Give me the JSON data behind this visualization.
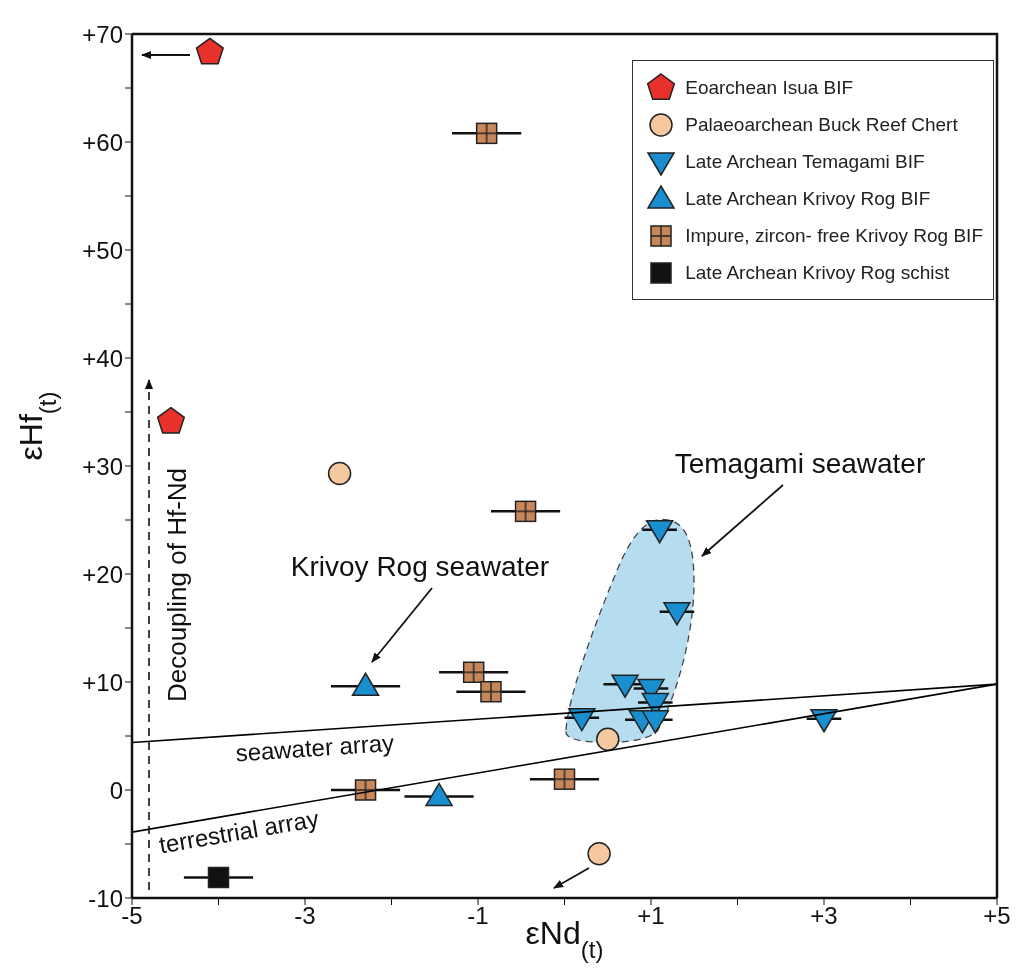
{
  "chart_data": {
    "type": "scatter",
    "xlabel": "εNd$_{(t)}$",
    "ylabel": "εHf$_{(t)}$",
    "xlim": [
      -5,
      5
    ],
    "ylim": [
      -10,
      70
    ],
    "xticks": [
      -5,
      {
        "value": -4,
        "label": null
      },
      -3,
      {
        "value": -2,
        "label": null
      },
      -1,
      {
        "value": 0,
        "label": null
      },
      {
        "value": 1,
        "label": "+1"
      },
      {
        "value": 2,
        "label": null
      },
      {
        "value": 3,
        "label": "+3"
      },
      {
        "value": 4,
        "label": null
      },
      {
        "value": 5,
        "label": "+5"
      }
    ],
    "yticks": [
      -10,
      {
        "value": -5,
        "label": null
      },
      0,
      {
        "value": 5,
        "label": null
      },
      {
        "value": 10,
        "label": "+10"
      },
      {
        "value": 15,
        "label": null
      },
      {
        "value": 20,
        "label": "+20"
      },
      {
        "value": 25,
        "label": null
      },
      {
        "value": 30,
        "label": "+30"
      },
      {
        "value": 35,
        "label": null
      },
      {
        "value": 40,
        "label": "+40"
      },
      {
        "value": 45,
        "label": null
      },
      {
        "value": 50,
        "label": "+50"
      },
      {
        "value": 55,
        "label": null
      },
      {
        "value": 60,
        "label": "+60"
      },
      {
        "value": 65,
        "label": null
      },
      {
        "value": 70,
        "label": "+70"
      }
    ],
    "legend": "top right",
    "series": [
      {
        "name": "Eoarchean Isua BIF",
        "color": "#e8312a",
        "x": [
          -4.1,
          -4.55
        ],
        "values": [
          68.3,
          34.1
        ]
      },
      {
        "name": "Palaeoarchean Buck Reef Chert",
        "color": "#f5c8a0",
        "x": [
          -2.6,
          0.5,
          0.4
        ],
        "values": [
          29.3,
          4.7,
          -5.9
        ]
      },
      {
        "name": "Late Archean Temagami BIF",
        "color": "#1a8fcf",
        "x": [
          1.1,
          1.3,
          0.7,
          1.0,
          1.05,
          0.2,
          0.9,
          1.05,
          3.0
        ],
        "values": [
          24.1,
          16.5,
          9.8,
          9.4,
          8.1,
          6.7,
          6.5,
          6.5,
          6.6
        ],
        "xerrors": [
          0.2,
          0.2,
          0.25,
          0.2,
          0.2,
          0.2,
          0.2,
          0.2,
          0.2
        ]
      },
      {
        "name": "Late Archean Krivoy Rog BIF",
        "color": "#1a8fcf",
        "x": [
          -2.3,
          -1.45
        ],
        "values": [
          9.6,
          -0.6
        ],
        "xerrors": [
          0.4,
          0.4
        ]
      },
      {
        "name": "Impure, zircon- free Krivoy Rog BIF",
        "color": "#c8875a",
        "x": [
          -0.9,
          -0.45,
          -1.05,
          -0.85,
          0.0,
          -2.3
        ],
        "values": [
          60.8,
          25.8,
          10.9,
          9.1,
          1.0,
          0.0
        ],
        "xerrors": [
          0.4,
          0.4,
          0.4,
          0.4,
          0.4,
          0.4
        ]
      },
      {
        "name": "Late Archean Krivoy Rog schist",
        "color": "#111111",
        "x": [
          -4.0
        ],
        "values": [
          -8.1
        ],
        "xerrors": [
          0.4
        ]
      },
      {
        "name": "seawater array",
        "type": "line",
        "color": "#000000",
        "x": [
          -5,
          5
        ],
        "values": [
          4.4,
          9.8
        ]
      },
      {
        "name": "terrestrial array",
        "type": "line",
        "color": "#000000",
        "x": [
          -5,
          5
        ],
        "values": [
          -3.9,
          9.8
        ]
      }
    ],
    "annotations": [
      "Krivoy Rog seawater",
      "Temagami seawater",
      "Decoupling of Hf-Nd"
    ]
  }
}
